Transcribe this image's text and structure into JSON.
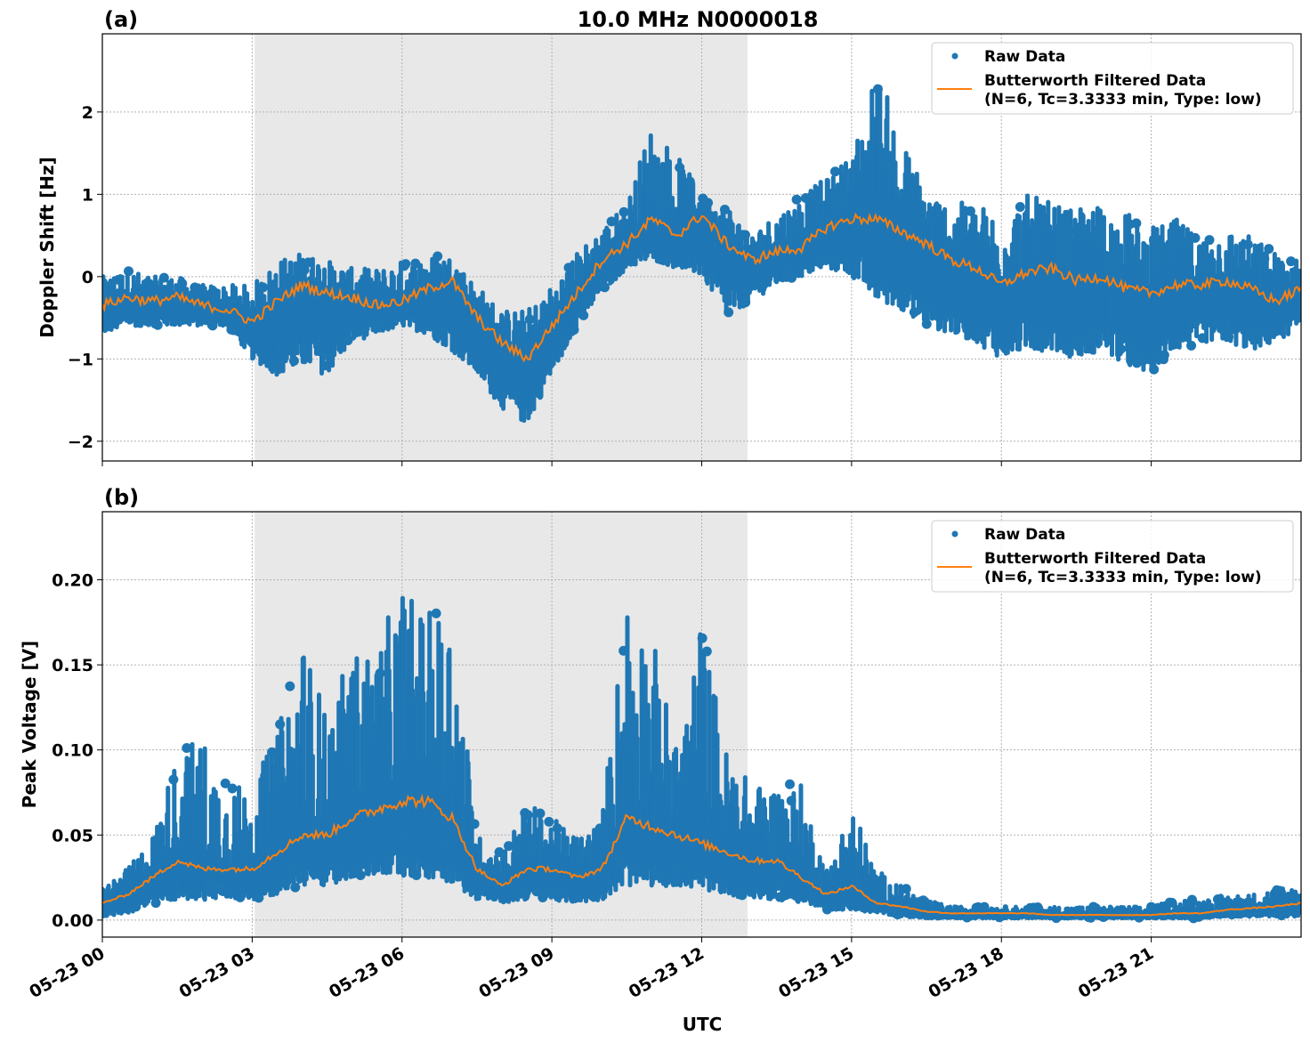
{
  "figure_title": "10.0 MHz N0000018",
  "chart_data": [
    {
      "panel_label": "(a)",
      "type": "scatter",
      "ylabel": "Doppler Shift [Hz]",
      "xlabel": "",
      "ylim": [
        -2.24,
        2.95
      ],
      "xlim": [
        "05-23 00:00",
        "05-24 00:00"
      ],
      "grid": true,
      "legend_placement": "top-right",
      "shaded_interval": [
        "05-23 03:03",
        "05-23 12:55"
      ],
      "shade_color": "#e8e8e8",
      "yticks": [
        -2,
        -1,
        0,
        1,
        2
      ],
      "ytick_labels": [
        "−2",
        "−1",
        "0",
        "1",
        "2"
      ],
      "x_hours_step": 0.5,
      "series": [
        {
          "name": "Raw Data",
          "kind": "scatter",
          "color": "#1f77b4",
          "raw_min": [
            -0.7,
            -0.6,
            -0.6,
            -0.6,
            -0.6,
            -0.6,
            -1.0,
            -1.2,
            -1.1,
            -1.2,
            -0.8,
            -0.7,
            -0.6,
            -0.7,
            -0.9,
            -1.2,
            -1.6,
            -1.8,
            -1.2,
            -0.6,
            -0.2,
            0.1,
            0.2,
            0.1,
            0.0,
            -0.5,
            -0.3,
            -0.1,
            0.0,
            0.1,
            0.0,
            -0.3,
            -0.4,
            -0.6,
            -0.7,
            -0.8,
            -1.0,
            -0.9,
            -0.9,
            -1.0,
            -0.9,
            -1.1,
            -1.2,
            -0.9,
            -0.8,
            -0.8,
            -0.9,
            -0.8,
            -0.6
          ],
          "raw_max": [
            0.0,
            0.1,
            0.0,
            0.0,
            -0.1,
            -0.1,
            -0.1,
            0.2,
            0.3,
            0.2,
            0.1,
            0.1,
            0.2,
            0.25,
            0.25,
            -0.1,
            -0.4,
            -0.4,
            -0.1,
            0.3,
            0.6,
            0.9,
            1.9,
            1.5,
            1.0,
            0.9,
            0.5,
            0.8,
            1.0,
            1.2,
            1.5,
            2.6,
            1.7,
            1.1,
            0.9,
            0.9,
            0.8,
            1.0,
            0.9,
            0.8,
            0.9,
            0.8,
            0.6,
            0.7,
            0.5,
            0.6,
            0.5,
            0.3,
            0.2
          ]
        },
        {
          "name": "Butterworth Filtered Data\n(N=6, Tc=3.3333 min, Type: low)",
          "kind": "line",
          "color": "#ff7f0e",
          "values": [
            -0.35,
            -0.25,
            -0.3,
            -0.25,
            -0.35,
            -0.4,
            -0.55,
            -0.3,
            -0.1,
            -0.2,
            -0.25,
            -0.35,
            -0.3,
            -0.15,
            -0.05,
            -0.5,
            -0.8,
            -1.0,
            -0.6,
            -0.2,
            0.2,
            0.4,
            0.7,
            0.5,
            0.75,
            0.4,
            0.2,
            0.3,
            0.35,
            0.6,
            0.7,
            0.7,
            0.55,
            0.4,
            0.2,
            0.1,
            -0.1,
            0.05,
            0.1,
            -0.05,
            0.0,
            -0.15,
            -0.2,
            -0.1,
            -0.1,
            -0.05,
            -0.15,
            -0.3,
            -0.15
          ]
        }
      ]
    },
    {
      "panel_label": "(b)",
      "type": "scatter",
      "ylabel": "Peak Voltage [V]",
      "xlabel": "UTC",
      "ylim": [
        -0.01,
        0.24
      ],
      "xlim": [
        "05-23 00:00",
        "05-24 00:00"
      ],
      "grid": true,
      "legend_placement": "top-right",
      "shaded_interval": [
        "05-23 03:03",
        "05-23 12:55"
      ],
      "shade_color": "#e8e8e8",
      "yticks": [
        0,
        0.05,
        0.1,
        0.15,
        0.2
      ],
      "ytick_labels": [
        "0.00",
        "0.05",
        "0.10",
        "0.15",
        "0.20"
      ],
      "x_hours_step": 0.5,
      "series": [
        {
          "name": "Raw Data",
          "kind": "scatter",
          "color": "#1f77b4",
          "raw_min": [
            0.002,
            0.004,
            0.008,
            0.012,
            0.012,
            0.012,
            0.012,
            0.015,
            0.02,
            0.02,
            0.025,
            0.025,
            0.025,
            0.025,
            0.022,
            0.012,
            0.01,
            0.012,
            0.012,
            0.01,
            0.012,
            0.02,
            0.02,
            0.02,
            0.018,
            0.015,
            0.012,
            0.012,
            0.01,
            0.006,
            0.006,
            0.004,
            0.002,
            0.001,
            0.001,
            0.001,
            0.001,
            0.001,
            0.001,
            0.001,
            0.001,
            0.001,
            0.001,
            0.001,
            0.001,
            0.002,
            0.002,
            0.002,
            0.002
          ],
          "raw_max": [
            0.02,
            0.03,
            0.05,
            0.1,
            0.11,
            0.08,
            0.08,
            0.11,
            0.17,
            0.12,
            0.16,
            0.16,
            0.2,
            0.18,
            0.19,
            0.05,
            0.04,
            0.07,
            0.06,
            0.05,
            0.06,
            0.2,
            0.17,
            0.1,
            0.18,
            0.1,
            0.08,
            0.08,
            0.08,
            0.03,
            0.07,
            0.03,
            0.02,
            0.012,
            0.008,
            0.008,
            0.008,
            0.008,
            0.008,
            0.008,
            0.008,
            0.008,
            0.008,
            0.012,
            0.012,
            0.015,
            0.015,
            0.02,
            0.02
          ]
        },
        {
          "name": "Butterworth Filtered Data\n(N=6, Tc=3.3333 min, Type: low)",
          "kind": "line",
          "color": "#ff7f0e",
          "values": [
            0.01,
            0.015,
            0.025,
            0.035,
            0.03,
            0.03,
            0.03,
            0.04,
            0.05,
            0.05,
            0.06,
            0.065,
            0.07,
            0.07,
            0.06,
            0.03,
            0.02,
            0.03,
            0.03,
            0.025,
            0.03,
            0.06,
            0.055,
            0.05,
            0.045,
            0.04,
            0.035,
            0.035,
            0.025,
            0.015,
            0.02,
            0.01,
            0.008,
            0.005,
            0.004,
            0.004,
            0.004,
            0.004,
            0.003,
            0.003,
            0.003,
            0.003,
            0.003,
            0.004,
            0.004,
            0.006,
            0.007,
            0.008,
            0.01
          ]
        }
      ]
    }
  ],
  "xtick_labels": [
    "05-23 00",
    "05-23 03",
    "05-23 06",
    "05-23 09",
    "05-23 12",
    "05-23 15",
    "05-23 18",
    "05-23 21"
  ],
  "legend": {
    "raw": "Raw Data",
    "filtered_line1": "Butterworth Filtered Data",
    "filtered_line2": "(N=6, Tc=3.3333 min, Type: low)"
  }
}
